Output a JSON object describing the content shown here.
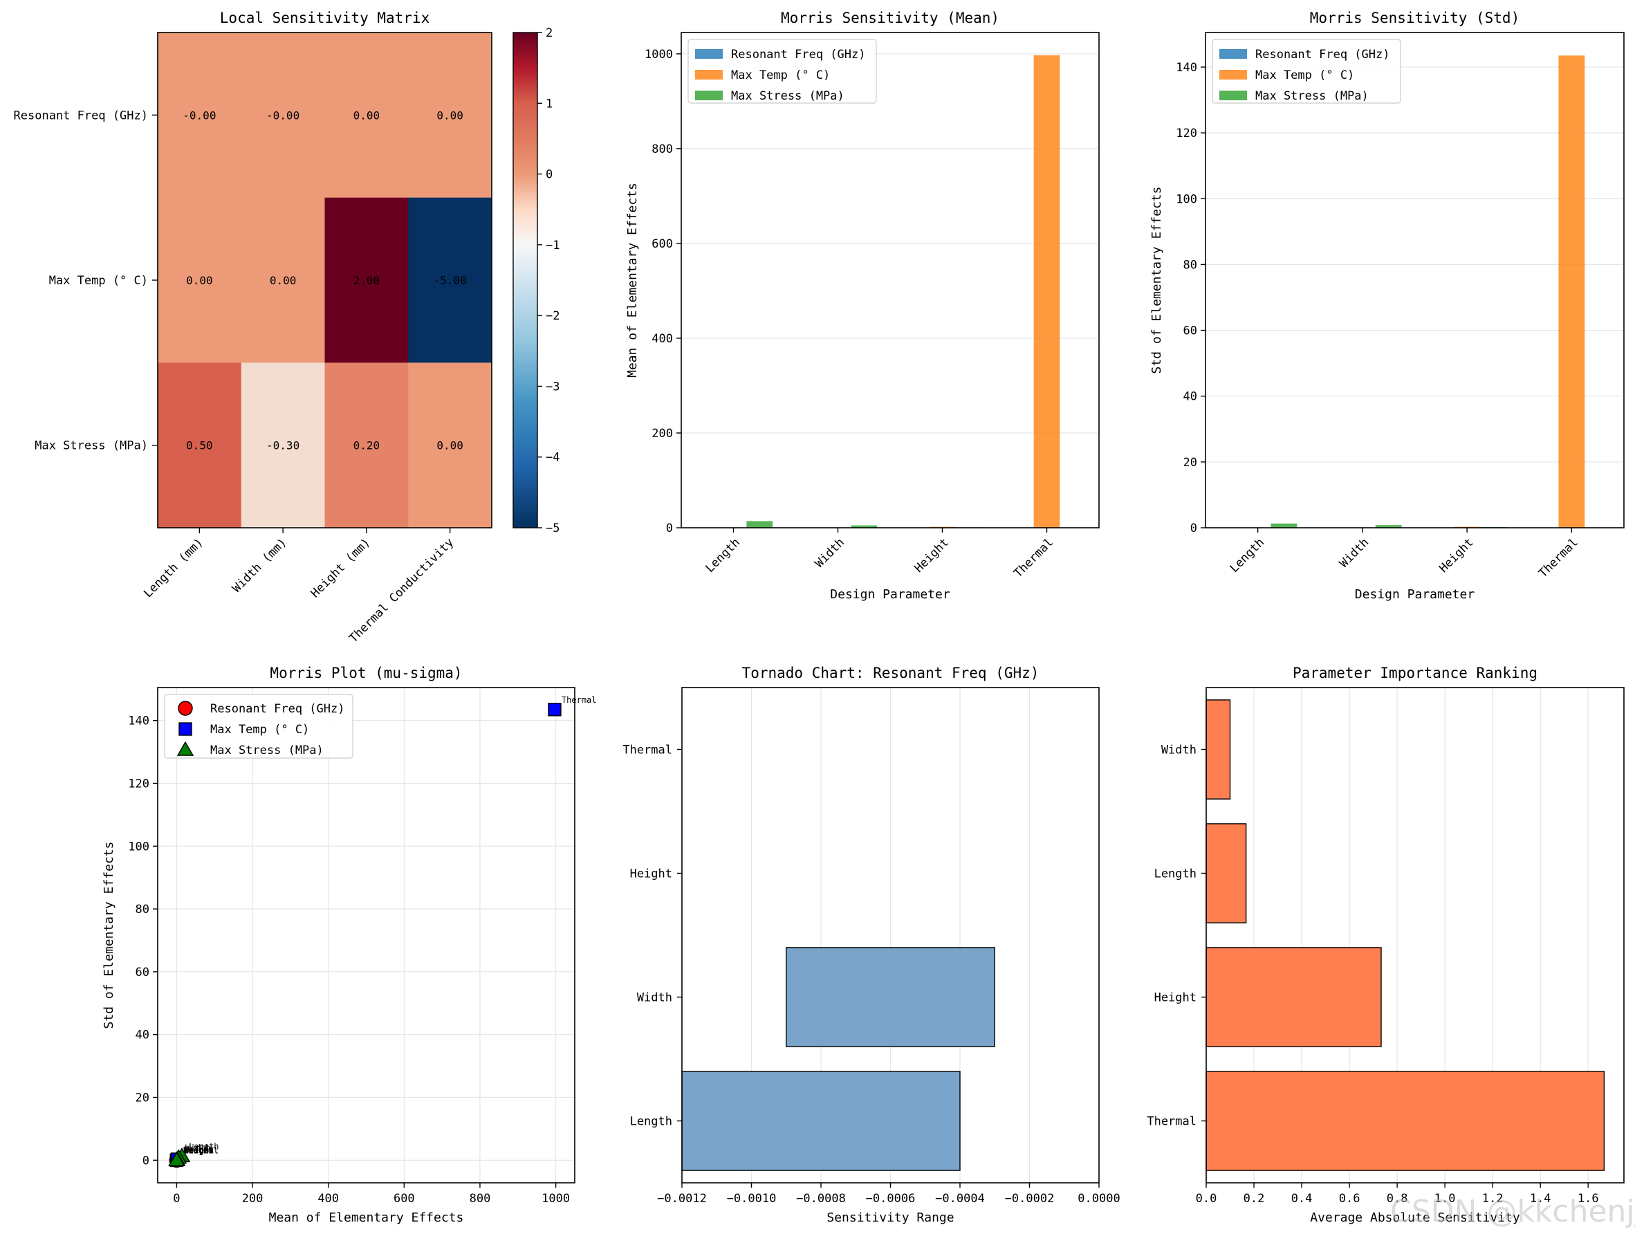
{
  "colors": {
    "freq": "#1f77b4",
    "temp": "#ff7f0e",
    "stress": "#2ca02c",
    "tornado": "#6b9ac4",
    "ranking": "#ff7f50",
    "morris_freq": "#ff0000",
    "morris_temp": "#0000ff",
    "morris_stress": "#008000"
  },
  "watermark": "CSDN @kkchenjj",
  "chart_data": [
    {
      "id": "heatmap",
      "type": "heatmap",
      "title": "Local Sensitivity Matrix",
      "rows": [
        "Resonant Freq (GHz)",
        "Max Temp (° C)",
        "Max Stress (MPa)"
      ],
      "cols": [
        "Length (mm)",
        "Width (mm)",
        "Height (mm)",
        "Thermal Conductivity"
      ],
      "values": [
        [
          -0.0004,
          -0.0003,
          0.0,
          0.0
        ],
        [
          0.0,
          0.0,
          2.0,
          -5.0
        ],
        [
          0.5,
          -0.3,
          0.2,
          0.0
        ]
      ],
      "cell_labels": [
        [
          "-0.00",
          "-0.00",
          "0.00",
          "0.00"
        ],
        [
          "0.00",
          "0.00",
          "2.00",
          "-5.00"
        ],
        [
          "0.50",
          "-0.30",
          "0.20",
          "0.00"
        ]
      ],
      "colorbar": {
        "vmin": -5,
        "vmax": 2,
        "ticks": [
          2,
          1,
          0,
          -1,
          -2,
          -3,
          -4,
          -5
        ]
      }
    },
    {
      "id": "morris_mean",
      "type": "bar",
      "title": "Morris Sensitivity (Mean)",
      "xlabel": "Design Parameter",
      "ylabel": "Mean of Elementary Effects",
      "categories": [
        "Length",
        "Width",
        "Height",
        "Thermal"
      ],
      "series": [
        {
          "name": "Resonant Freq (GHz)",
          "values": [
            0.0005,
            0.0004,
            0.0,
            0.0
          ]
        },
        {
          "name": "Max Temp (° C)",
          "values": [
            0.0,
            0.0,
            2.0,
            997.0
          ]
        },
        {
          "name": "Max Stress (MPa)",
          "values": [
            14.0,
            5.0,
            1.0,
            0.0
          ]
        }
      ],
      "ylim": [
        0,
        1045
      ],
      "yticks": [
        0,
        200,
        400,
        600,
        800,
        1000
      ],
      "legend": "upper-left"
    },
    {
      "id": "morris_std",
      "type": "bar",
      "title": "Morris Sensitivity (Std)",
      "xlabel": "Design Parameter",
      "ylabel": "Std of Elementary Effects",
      "categories": [
        "Length",
        "Width",
        "Height",
        "Thermal"
      ],
      "series": [
        {
          "name": "Resonant Freq (GHz)",
          "values": [
            0.0001,
            0.0001,
            0.0,
            0.0
          ]
        },
        {
          "name": "Max Temp (° C)",
          "values": [
            0.0,
            0.0,
            0.3,
            143.5
          ]
        },
        {
          "name": "Max Stress (MPa)",
          "values": [
            1.3,
            0.8,
            0.2,
            0.0
          ]
        }
      ],
      "ylim": [
        0,
        150.5
      ],
      "yticks": [
        0,
        20,
        40,
        60,
        80,
        100,
        120,
        140
      ],
      "legend": "upper-left"
    },
    {
      "id": "morris_plot",
      "type": "scatter",
      "title": "Morris Plot (mu-sigma)",
      "xlabel": "Mean of Elementary Effects",
      "ylabel": "Std of Elementary Effects",
      "xlim": [
        -50,
        1050
      ],
      "ylim": [
        -7.2,
        150.5
      ],
      "xticks": [
        0,
        200,
        400,
        600,
        800,
        1000
      ],
      "yticks": [
        0,
        20,
        40,
        60,
        80,
        100,
        120,
        140
      ],
      "series": [
        {
          "name": "Resonant Freq (GHz)",
          "marker": "circle",
          "points": [
            [
              0.0005,
              0.0001,
              "Length"
            ],
            [
              0.0004,
              0.0001,
              "Width"
            ],
            [
              0.0,
              0.0,
              "Height"
            ],
            [
              0.0,
              0.0,
              "Thermal"
            ]
          ]
        },
        {
          "name": "Max Temp (° C)",
          "marker": "square",
          "points": [
            [
              0.0,
              0.0,
              "Length"
            ],
            [
              0.0,
              0.0,
              "Width"
            ],
            [
              2.0,
              0.3,
              "Height"
            ],
            [
              997.0,
              143.5,
              "Thermal"
            ]
          ]
        },
        {
          "name": "Max Stress (MPa)",
          "marker": "triangle",
          "points": [
            [
              14.0,
              1.3,
              "Length"
            ],
            [
              5.0,
              0.8,
              "Width"
            ],
            [
              1.0,
              0.2,
              "Height"
            ],
            [
              0.0,
              0.0,
              "Thermal"
            ]
          ]
        }
      ],
      "legend": "upper-left"
    },
    {
      "id": "tornado",
      "type": "bar",
      "orientation": "horizontal",
      "title": "Tornado Chart: Resonant Freq (GHz)",
      "xlabel": "Sensitivity Range",
      "categories": [
        "Length",
        "Width",
        "Height",
        "Thermal"
      ],
      "ranges": [
        [
          -0.0012,
          -0.0004
        ],
        [
          -0.0009,
          -0.0003
        ],
        [
          0.0,
          0.0
        ],
        [
          0.0,
          0.0
        ]
      ],
      "xlim": [
        -0.0012,
        0.0
      ],
      "xticks": [
        -0.0012,
        -0.001,
        -0.0008,
        -0.0006,
        -0.0004,
        -0.0002,
        0.0
      ],
      "xtick_labels": [
        "−0.0012",
        "−0.0010",
        "−0.0008",
        "−0.0006",
        "−0.0004",
        "−0.0002",
        "0.0000"
      ]
    },
    {
      "id": "ranking",
      "type": "bar",
      "orientation": "horizontal",
      "title": "Parameter Importance Ranking",
      "xlabel": "Average Absolute Sensitivity",
      "categories": [
        "Thermal",
        "Height",
        "Length",
        "Width"
      ],
      "values": [
        1.667,
        0.733,
        0.167,
        0.1
      ],
      "xlim": [
        0,
        1.75
      ],
      "xticks": [
        0.0,
        0.2,
        0.4,
        0.6,
        0.8,
        1.0,
        1.2,
        1.4,
        1.6
      ],
      "xtick_labels": [
        "0.0",
        "0.2",
        "0.4",
        "0.6",
        "0.8",
        "1.0",
        "1.2",
        "1.4",
        "1.6"
      ]
    }
  ]
}
